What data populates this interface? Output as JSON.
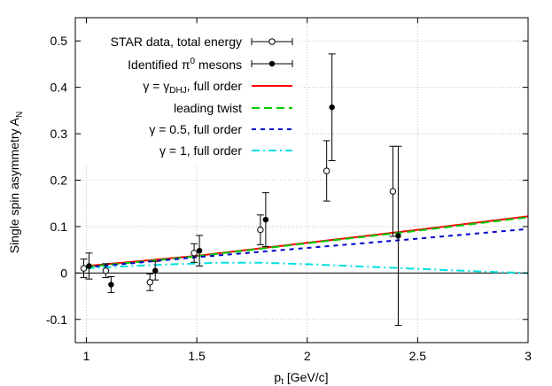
{
  "chart_data": {
    "type": "scatter",
    "xlabel": "p",
    "xlabel_sub": "t",
    "xlabel_unit": " [GeV/c]",
    "ylabel": "Single spin asymmetry A",
    "ylabel_sub": "N",
    "xlim": [
      0.95,
      3.0
    ],
    "ylim": [
      -0.15,
      0.55
    ],
    "xticks": [
      1,
      1.5,
      2,
      2.5,
      3
    ],
    "xtick_labels": [
      "1",
      "1.5",
      "2",
      "2.5",
      "3"
    ],
    "yticks": [
      -0.1,
      0,
      0.1,
      0.2,
      0.3,
      0.4,
      0.5
    ],
    "ytick_labels": [
      "-0.1",
      "0",
      "0.1",
      "0.2",
      "0.3",
      "0.4",
      "0.5"
    ],
    "grid": true,
    "legend_position": "top-left",
    "series": [
      {
        "name": "STAR data, total energy",
        "kind": "points",
        "marker": "open-circle",
        "color": "#000000",
        "points": [
          {
            "x": 1.0,
            "y": 0.01,
            "err": 0.02
          },
          {
            "x": 1.1,
            "y": 0.005,
            "err": 0.015
          },
          {
            "x": 1.3,
            "y": -0.02,
            "err": 0.018
          },
          {
            "x": 1.5,
            "y": 0.043,
            "err": 0.02
          },
          {
            "x": 1.8,
            "y": 0.093,
            "err": 0.032
          },
          {
            "x": 2.1,
            "y": 0.22,
            "err": 0.065
          },
          {
            "x": 2.4,
            "y": 0.176,
            "err": 0.097
          }
        ]
      },
      {
        "name": "Identified π0 mesons",
        "name_parts": [
          "Identified π",
          "0",
          " mesons"
        ],
        "kind": "points",
        "marker": "filled-circle",
        "color": "#000000",
        "points": [
          {
            "x": 1.0,
            "y": 0.015,
            "err": 0.028
          },
          {
            "x": 1.1,
            "y": -0.025,
            "err": 0.017
          },
          {
            "x": 1.3,
            "y": 0.005,
            "err": 0.02
          },
          {
            "x": 1.5,
            "y": 0.048,
            "err": 0.033
          },
          {
            "x": 1.8,
            "y": 0.115,
            "err": 0.058
          },
          {
            "x": 2.1,
            "y": 0.357,
            "err": 0.115
          },
          {
            "x": 2.4,
            "y": 0.08,
            "err": 0.193
          }
        ]
      },
      {
        "name": "γ = γDHJ, full order",
        "name_parts": [
          "γ = γ",
          "DHJ",
          ", full order"
        ],
        "kind": "line",
        "dash": "solid",
        "color": "#ff0000",
        "x": [
          1.0,
          1.5,
          2.0,
          2.5,
          3.0
        ],
        "y": [
          0.015,
          0.037,
          0.065,
          0.093,
          0.122
        ]
      },
      {
        "name": "leading twist",
        "kind": "line",
        "dash": "dashed",
        "color": "#00cc00",
        "x": [
          1.0,
          1.5,
          2.0,
          2.5,
          3.0
        ],
        "y": [
          0.013,
          0.036,
          0.064,
          0.091,
          0.12
        ]
      },
      {
        "name": "γ = 0.5, full order",
        "kind": "line",
        "dash": "short-dashed",
        "color": "#0000cc",
        "x": [
          1.0,
          1.5,
          2.0,
          2.5,
          3.0
        ],
        "y": [
          0.012,
          0.034,
          0.054,
          0.074,
          0.095
        ]
      },
      {
        "name": "γ = 1, full order",
        "kind": "line",
        "dash": "dash-dot",
        "color": "#00e0e0",
        "x": [
          1.0,
          1.2,
          1.4,
          1.6,
          1.8,
          2.0,
          2.2,
          2.4,
          2.6,
          2.8,
          3.0
        ],
        "y": [
          0.01,
          0.015,
          0.019,
          0.022,
          0.022,
          0.019,
          0.015,
          0.011,
          0.007,
          0.003,
          0.0
        ]
      }
    ]
  }
}
